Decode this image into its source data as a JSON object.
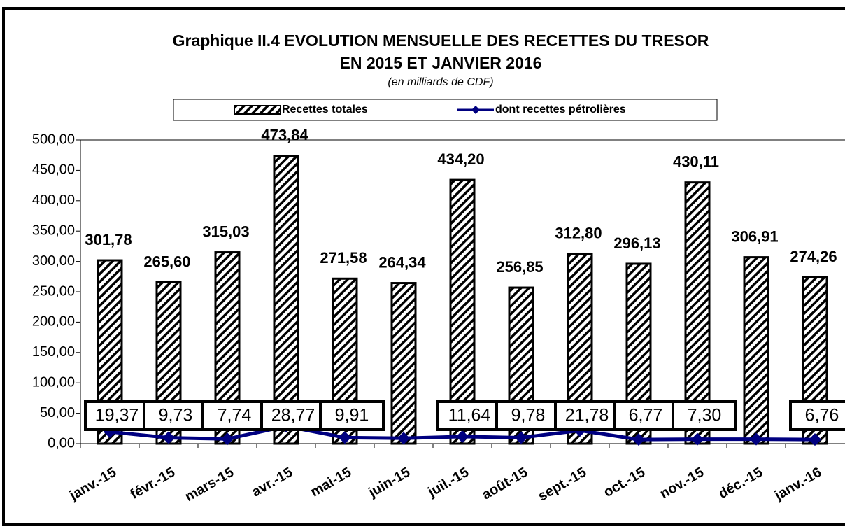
{
  "chart_data": {
    "type": "bar",
    "title": "Graphique II.4  EVOLUTION MENSUELLE DES RECETTES DU TRESOR",
    "title_line2": "EN 2015 ET JANVIER 2016",
    "subtitle": "(en milliards de CDF)",
    "categories": [
      "janv.-15",
      "févr.-15",
      "mars-15",
      "avr.-15",
      "mai-15",
      "juin-15",
      "juil.-15",
      "août-15",
      "sept.-15",
      "oct.-15",
      "nov.-15",
      "déc.-15",
      "janv.-16"
    ],
    "series": [
      {
        "name": "Recettes totales",
        "type": "bar",
        "color": "#000000",
        "values": [
          301.78,
          265.6,
          315.03,
          473.84,
          271.58,
          264.34,
          434.2,
          256.85,
          312.8,
          296.13,
          430.11,
          306.91,
          274.26
        ],
        "value_labels": [
          "301,78",
          "265,60",
          "315,03",
          "473,84",
          "271,58",
          "264,34",
          "434,20",
          "256,85",
          "312,80",
          "296,13",
          "430,11",
          "306,91",
          "274,26"
        ]
      },
      {
        "name": "dont recettes pétrolières",
        "type": "line",
        "color": "#000080",
        "values": [
          19.37,
          9.73,
          7.74,
          28.77,
          9.91,
          9,
          11.64,
          9.78,
          21.78,
          6.77,
          7.3,
          7.3,
          6.76
        ],
        "value_labels": [
          "19,37",
          "9,73",
          "7,74",
          "28,77",
          "9,91",
          null,
          "11,64",
          "9,78",
          "21,78",
          "6,77",
          "7,30",
          null,
          "6,76"
        ]
      }
    ],
    "ylim": [
      0,
      500
    ],
    "yticks": [
      {
        "value": 0,
        "label": "0,00"
      },
      {
        "value": 50,
        "label": "50,00"
      },
      {
        "value": 100,
        "label": "100,00"
      },
      {
        "value": 150,
        "label": "150,00"
      },
      {
        "value": 200,
        "label": "200,00"
      },
      {
        "value": 250,
        "label": "250,00"
      },
      {
        "value": 300,
        "label": "300,00"
      },
      {
        "value": 350,
        "label": "350,00"
      },
      {
        "value": 400,
        "label": "400,00"
      },
      {
        "value": 450,
        "label": "450,00"
      },
      {
        "value": 500,
        "label": "500,00"
      }
    ],
    "legend": "top"
  }
}
